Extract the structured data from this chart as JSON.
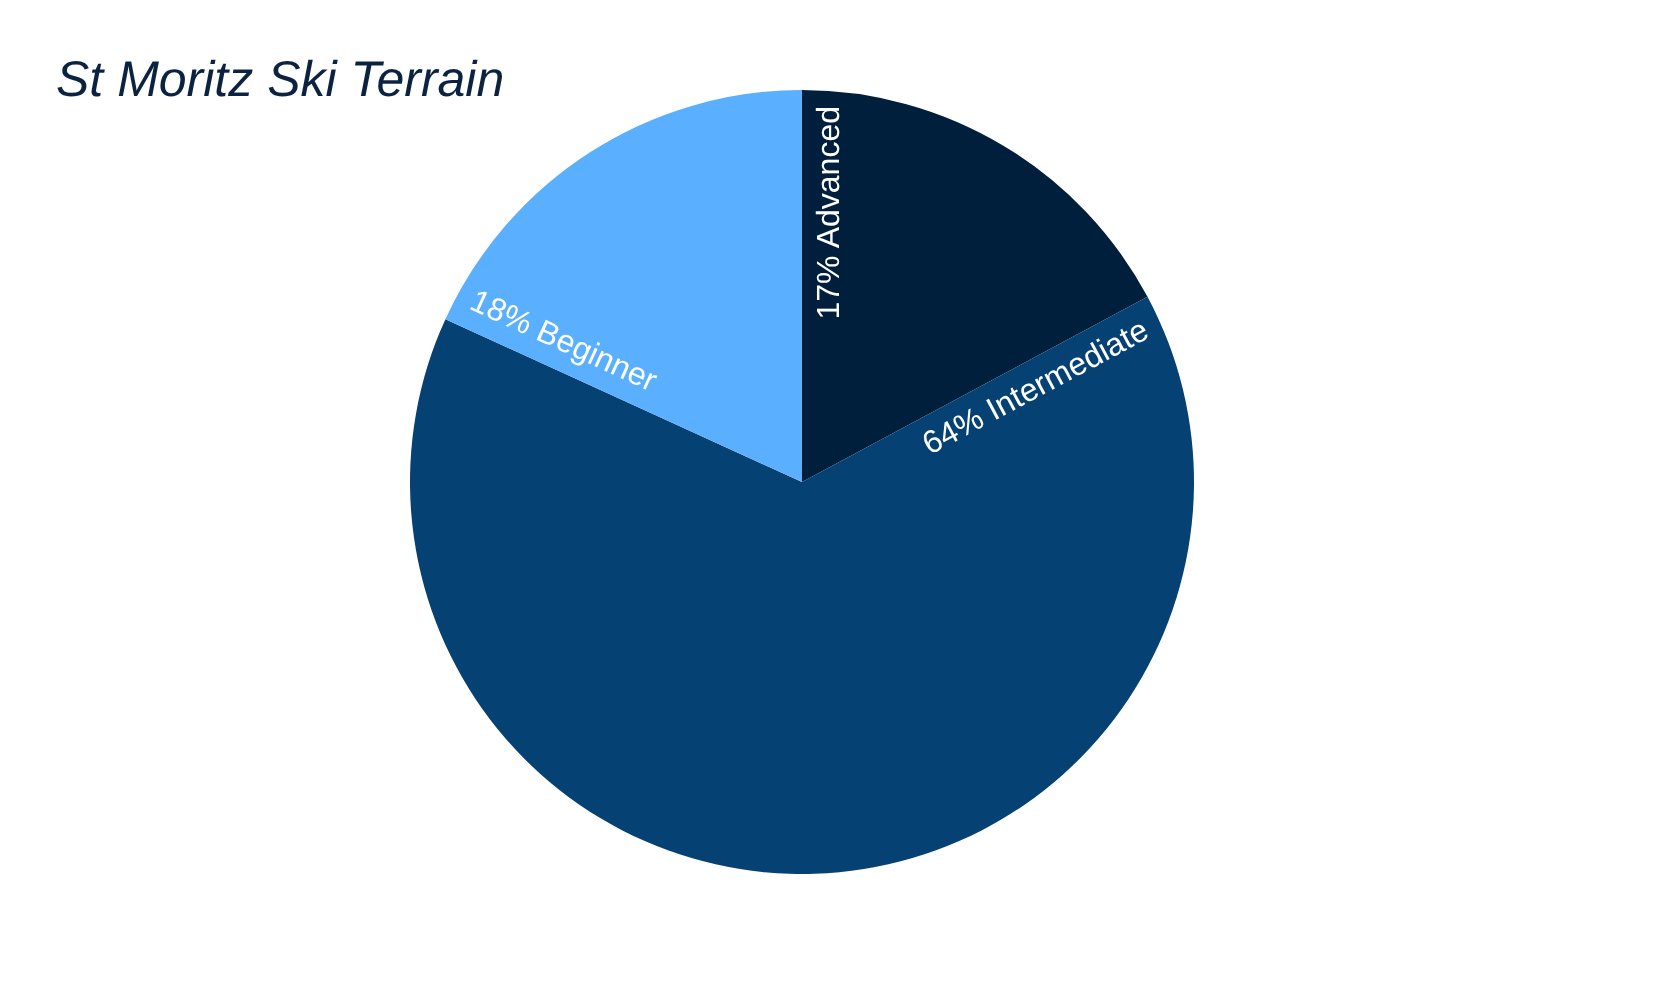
{
  "chart_data": {
    "type": "pie",
    "title": "St Moritz Ski Terrain",
    "categories": [
      "Advanced",
      "Intermediate",
      "Beginner"
    ],
    "values": [
      17,
      64,
      18
    ],
    "colors": [
      "#001f3d",
      "#064173",
      "#5aafff"
    ],
    "value_labels": [
      "17%",
      "64%",
      "18%"
    ],
    "legend": false
  }
}
